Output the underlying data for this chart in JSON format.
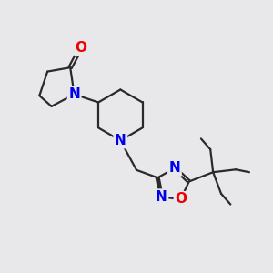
{
  "bg_color": "#e8e8ea",
  "bond_color": "#2a2a2a",
  "N_color": "#0000ee",
  "O_color": "#ee0000",
  "bond_width": 1.6,
  "font_size_atom": 11,
  "fig_width": 3.0,
  "fig_height": 3.0,
  "dpi": 100,
  "xlim": [
    0,
    10
  ],
  "ylim": [
    0,
    10
  ]
}
